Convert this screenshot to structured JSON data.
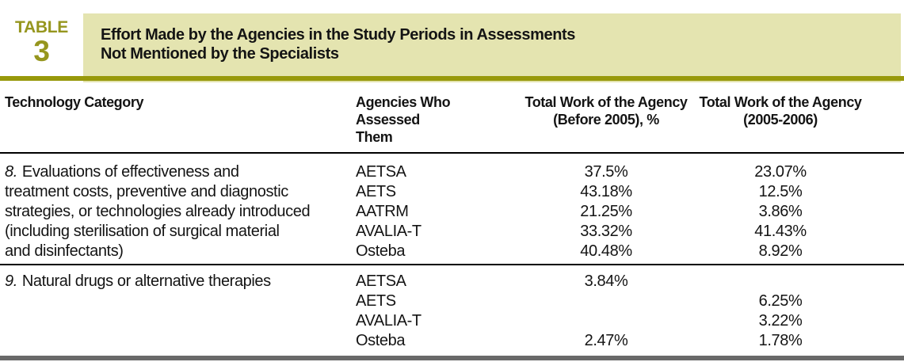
{
  "header": {
    "label_word": "TABLE",
    "label_number": "3",
    "title_line1": "Effort Made by the Agencies in the Study Periods in Assessments",
    "title_line2": "Not Mentioned by the Specialists"
  },
  "colors": {
    "olive_label_text": "#96961e",
    "olive_rule": "#98990b",
    "title_box_bg": "#e4e4b0",
    "thin_rule": "#000000",
    "bottom_rule": "#696969"
  },
  "table": {
    "columns": {
      "col1": "Technology Category",
      "col2_line1": "Agencies Who Assessed",
      "col2_line2": "Them",
      "col3_line1": "Total Work of the Agency",
      "col3_line2": "(Before 2005), %",
      "col4_line1": "Total Work of the Agency",
      "col4_line2": "(2005-2006)"
    },
    "rows": [
      {
        "number": "8.",
        "category_lines": [
          "Evaluations of effectiveness and",
          "treatment costs, preventive and diagnostic",
          "strategies, or technologies already introduced",
          "(including sterilisation of surgical material",
          "and disinfectants)"
        ],
        "agencies": [
          "AETSA",
          "AETS",
          "AATRM",
          "AVALIA-T",
          "Osteba"
        ],
        "before": [
          "37.5%",
          "43.18%",
          "21.25%",
          "33.32%",
          "40.48%"
        ],
        "after": [
          "23.07%",
          "12.5%",
          "3.86%",
          "41.43%",
          "8.92%"
        ]
      },
      {
        "number": "9.",
        "category_lines": [
          "Natural drugs or alternative therapies"
        ],
        "agencies": [
          "AETSA",
          "AETS",
          "AVALIA-T",
          "Osteba"
        ],
        "before": [
          "3.84%",
          "",
          "",
          "2.47%"
        ],
        "after": [
          "",
          "6.25%",
          "3.22%",
          "1.78%"
        ]
      }
    ]
  }
}
